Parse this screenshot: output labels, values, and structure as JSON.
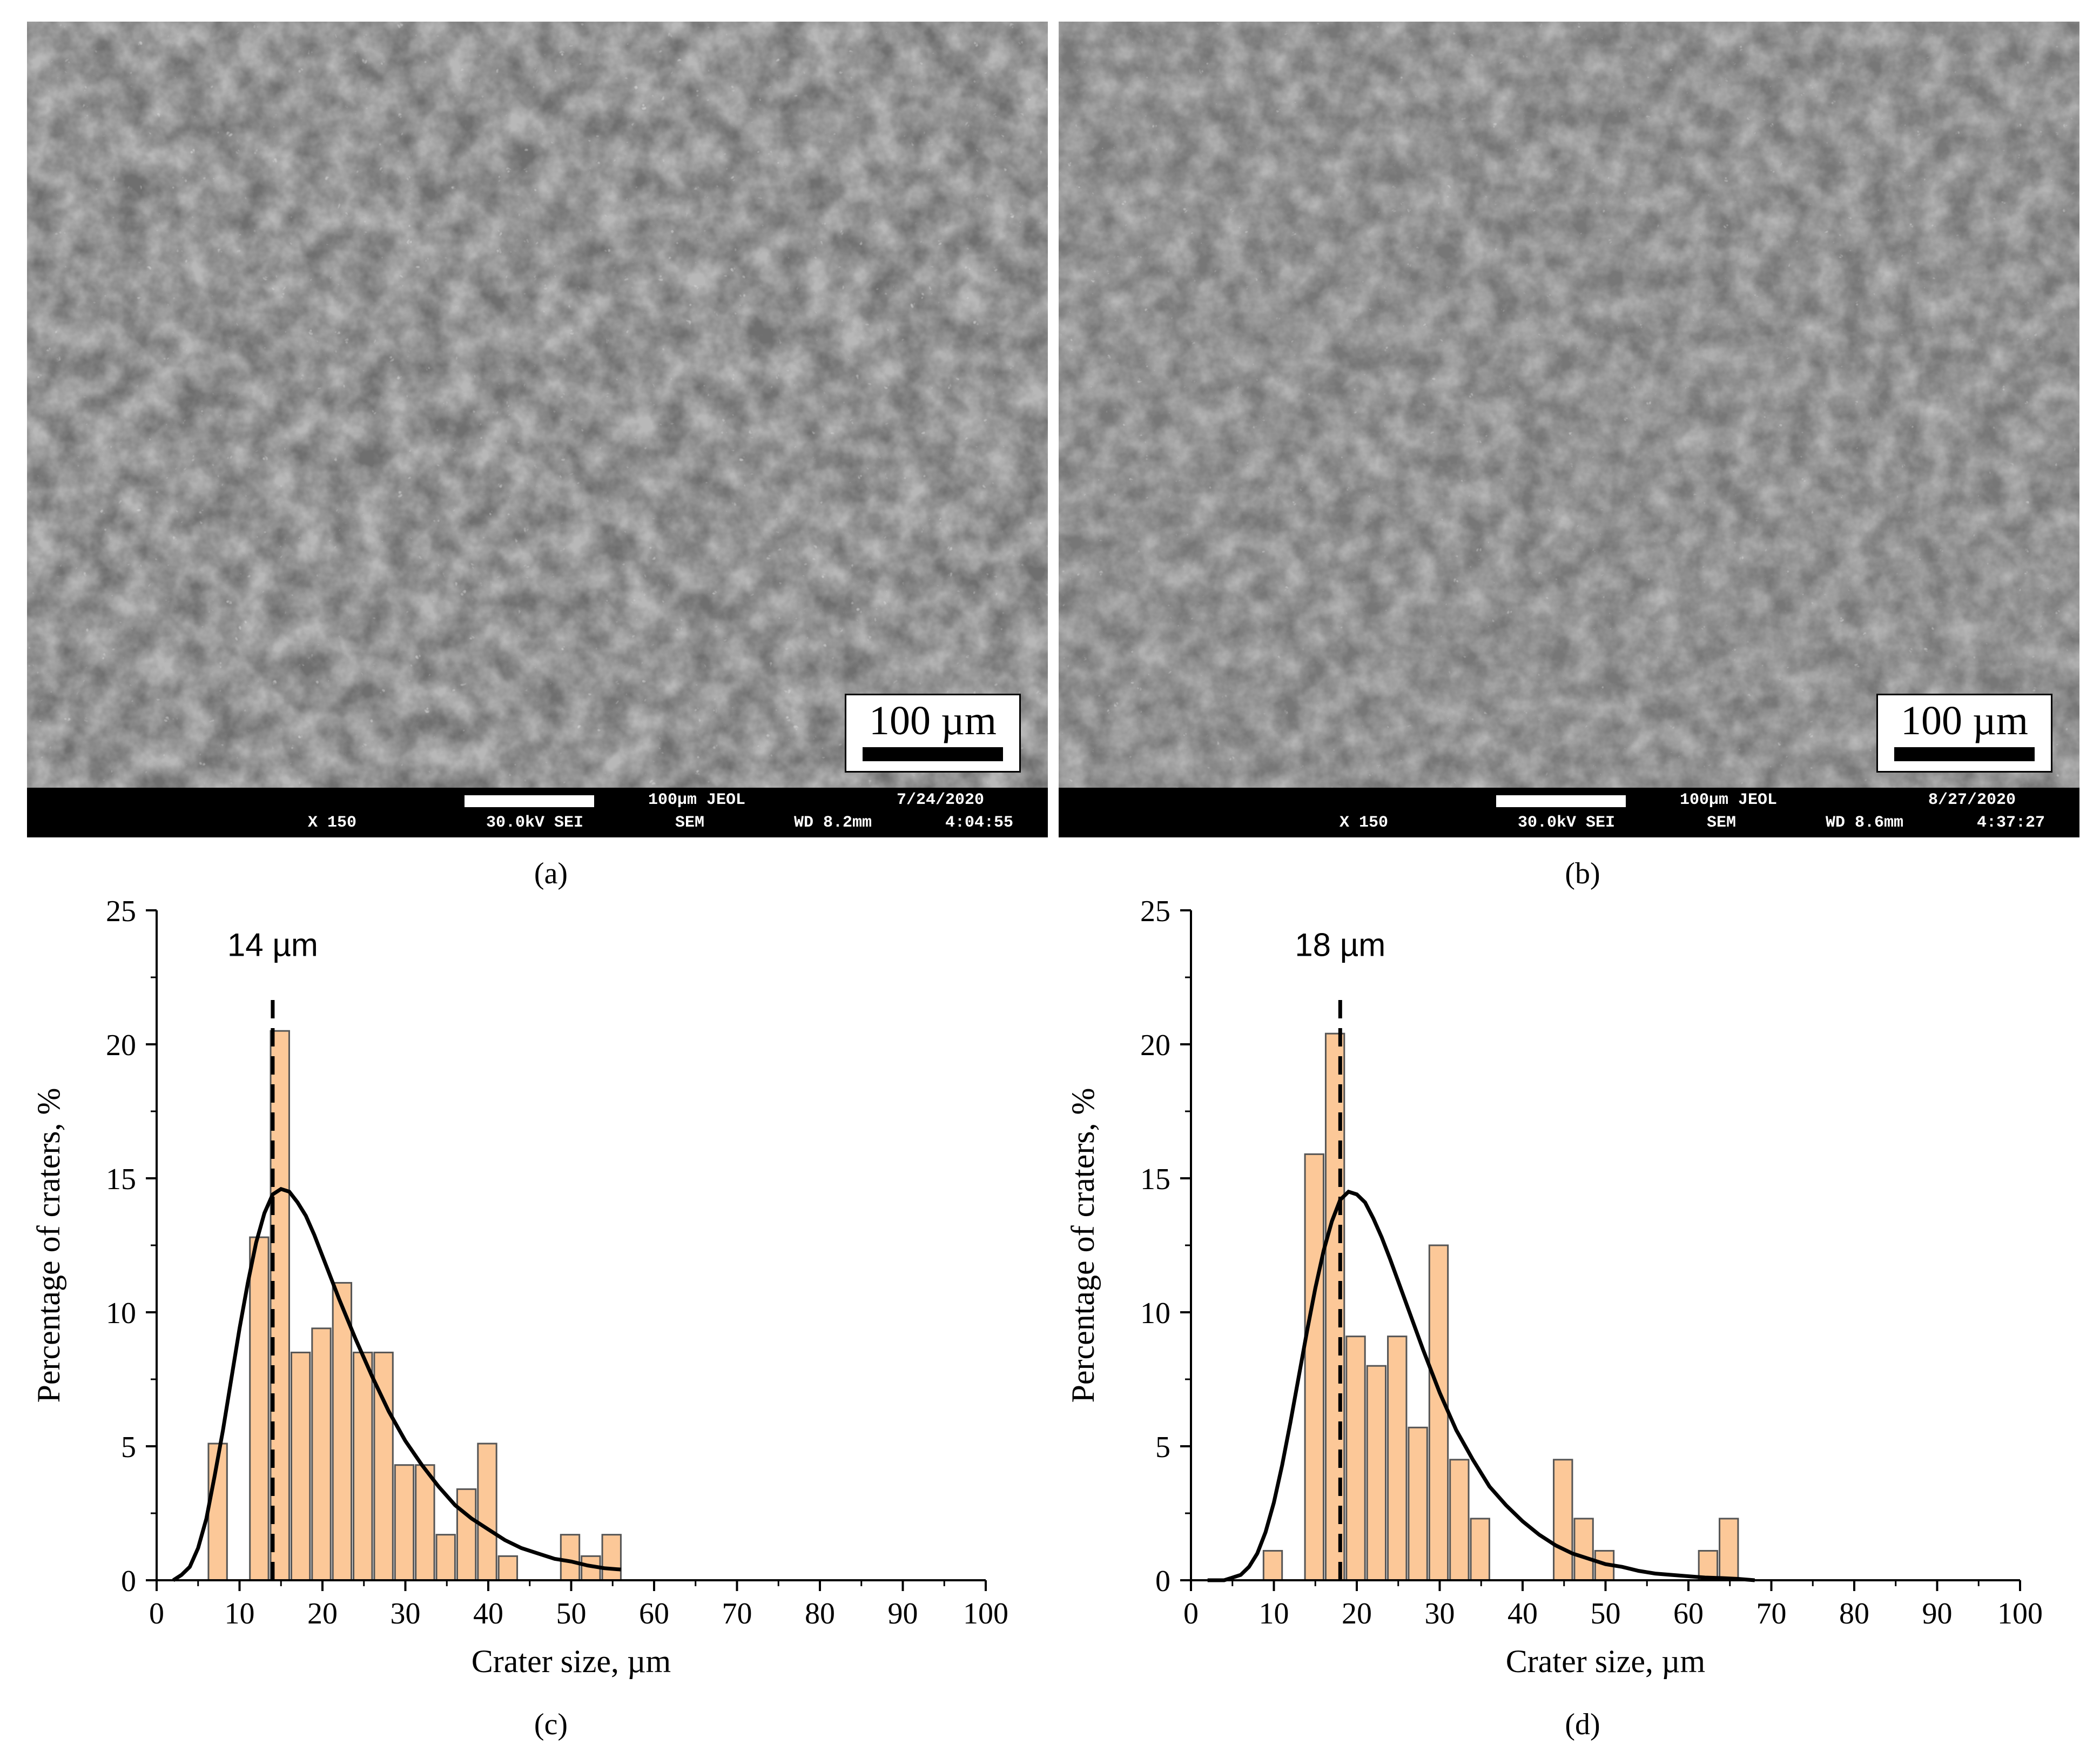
{
  "panels": {
    "a": {
      "caption": "(a)",
      "scale_label": "100 µm",
      "sem_info": {
        "line1": "100µm JEOL",
        "date": "7/24/2020",
        "mag": "X 150",
        "kv": "30.0kV SEI",
        "mode": "SEM",
        "wd": "WD 8.2mm",
        "time": "4:04:55"
      }
    },
    "b": {
      "caption": "(b)",
      "scale_label": "100 µm",
      "sem_info": {
        "line1": "100µm JEOL",
        "date": "8/27/2020",
        "mag": "X 150",
        "kv": "30.0kV SEI",
        "mode": "SEM",
        "wd": "WD 8.6mm",
        "time": "4:37:27"
      }
    },
    "c": {
      "caption": "(c)"
    },
    "d": {
      "caption": "(d)"
    }
  },
  "colors": {
    "bar_fill": "#fcc898",
    "bar_stroke": "#555555",
    "curve": "#000000"
  },
  "chart_data": [
    {
      "type": "bar",
      "xlabel": "Crater size, µm",
      "ylabel": "Percentage of craters, %",
      "xlim": [
        0,
        100
      ],
      "ylim": [
        0,
        25
      ],
      "xticks": [
        0,
        10,
        20,
        30,
        40,
        50,
        60,
        70,
        80,
        90,
        100
      ],
      "yticks": [
        0,
        5,
        10,
        15,
        20,
        25
      ],
      "bin_width": 2.5,
      "bins": [
        {
          "x": 7.5,
          "y": 5.1
        },
        {
          "x": 10,
          "y": 0
        },
        {
          "x": 12.5,
          "y": 12.8
        },
        {
          "x": 15,
          "y": 20.5
        },
        {
          "x": 17.5,
          "y": 8.5
        },
        {
          "x": 20,
          "y": 9.4
        },
        {
          "x": 22.5,
          "y": 11.1
        },
        {
          "x": 25,
          "y": 8.5
        },
        {
          "x": 27.5,
          "y": 8.5
        },
        {
          "x": 30,
          "y": 4.3
        },
        {
          "x": 32.5,
          "y": 4.3
        },
        {
          "x": 35,
          "y": 1.7
        },
        {
          "x": 37.5,
          "y": 3.4
        },
        {
          "x": 40,
          "y": 5.1
        },
        {
          "x": 42.5,
          "y": 0.9
        },
        {
          "x": 50,
          "y": 1.7
        },
        {
          "x": 52.5,
          "y": 0.9
        },
        {
          "x": 55,
          "y": 1.7
        }
      ],
      "fit_curve": {
        "type": "lognormal",
        "points": [
          [
            2,
            0.0
          ],
          [
            3,
            0.2
          ],
          [
            4,
            0.5
          ],
          [
            5,
            1.2
          ],
          [
            6,
            2.3
          ],
          [
            7,
            3.9
          ],
          [
            8,
            5.6
          ],
          [
            9,
            7.5
          ],
          [
            10,
            9.4
          ],
          [
            11,
            11.1
          ],
          [
            12,
            12.6
          ],
          [
            13,
            13.7
          ],
          [
            14,
            14.4
          ],
          [
            15,
            14.6
          ],
          [
            16,
            14.5
          ],
          [
            17,
            14.1
          ],
          [
            18,
            13.6
          ],
          [
            19,
            12.9
          ],
          [
            20,
            12.1
          ],
          [
            22,
            10.5
          ],
          [
            24,
            9.0
          ],
          [
            26,
            7.6
          ],
          [
            28,
            6.3
          ],
          [
            30,
            5.2
          ],
          [
            32,
            4.3
          ],
          [
            34,
            3.5
          ],
          [
            36,
            2.8
          ],
          [
            38,
            2.3
          ],
          [
            40,
            1.9
          ],
          [
            42,
            1.5
          ],
          [
            44,
            1.2
          ],
          [
            46,
            1.0
          ],
          [
            48,
            0.8
          ],
          [
            50,
            0.7
          ],
          [
            52,
            0.55
          ],
          [
            54,
            0.45
          ],
          [
            56,
            0.4
          ]
        ]
      },
      "peak_marker": {
        "x": 14,
        "label": "14 µm"
      }
    },
    {
      "type": "bar",
      "xlabel": "Crater size, µm",
      "ylabel": "Percentage of craters, %",
      "xlim": [
        0,
        100
      ],
      "ylim": [
        0,
        25
      ],
      "xticks": [
        0,
        10,
        20,
        30,
        40,
        50,
        60,
        70,
        80,
        90,
        100
      ],
      "yticks": [
        0,
        5,
        10,
        15,
        20,
        25
      ],
      "bin_width": 2.5,
      "bins": [
        {
          "x": 10,
          "y": 1.1
        },
        {
          "x": 12.5,
          "y": 0
        },
        {
          "x": 15,
          "y": 15.9
        },
        {
          "x": 17.5,
          "y": 20.4
        },
        {
          "x": 20,
          "y": 9.1
        },
        {
          "x": 22.5,
          "y": 8.0
        },
        {
          "x": 25,
          "y": 9.1
        },
        {
          "x": 27.5,
          "y": 5.7
        },
        {
          "x": 30,
          "y": 12.5
        },
        {
          "x": 32.5,
          "y": 4.5
        },
        {
          "x": 35,
          "y": 2.3
        },
        {
          "x": 45,
          "y": 4.5
        },
        {
          "x": 47.5,
          "y": 2.3
        },
        {
          "x": 50,
          "y": 1.1
        },
        {
          "x": 62.5,
          "y": 1.1
        },
        {
          "x": 65,
          "y": 2.3
        }
      ],
      "fit_curve": {
        "type": "lognormal",
        "points": [
          [
            2,
            0.0
          ],
          [
            4,
            0.0
          ],
          [
            5,
            0.1
          ],
          [
            6,
            0.2
          ],
          [
            7,
            0.5
          ],
          [
            8,
            1.0
          ],
          [
            9,
            1.8
          ],
          [
            10,
            2.9
          ],
          [
            11,
            4.3
          ],
          [
            12,
            5.9
          ],
          [
            13,
            7.6
          ],
          [
            14,
            9.3
          ],
          [
            15,
            10.9
          ],
          [
            16,
            12.3
          ],
          [
            17,
            13.4
          ],
          [
            18,
            14.2
          ],
          [
            19,
            14.5
          ],
          [
            20,
            14.4
          ],
          [
            21,
            14.1
          ],
          [
            22,
            13.5
          ],
          [
            23,
            12.8
          ],
          [
            24,
            12.0
          ],
          [
            26,
            10.3
          ],
          [
            28,
            8.6
          ],
          [
            30,
            7.0
          ],
          [
            32,
            5.6
          ],
          [
            34,
            4.5
          ],
          [
            36,
            3.5
          ],
          [
            38,
            2.8
          ],
          [
            40,
            2.2
          ],
          [
            42,
            1.7
          ],
          [
            44,
            1.3
          ],
          [
            46,
            1.0
          ],
          [
            48,
            0.8
          ],
          [
            50,
            0.6
          ],
          [
            52,
            0.5
          ],
          [
            54,
            0.35
          ],
          [
            56,
            0.25
          ],
          [
            58,
            0.2
          ],
          [
            60,
            0.15
          ],
          [
            62,
            0.1
          ],
          [
            64,
            0.08
          ],
          [
            66,
            0.05
          ],
          [
            68,
            0.0
          ]
        ]
      },
      "peak_marker": {
        "x": 18,
        "label": "18 µm"
      }
    }
  ]
}
